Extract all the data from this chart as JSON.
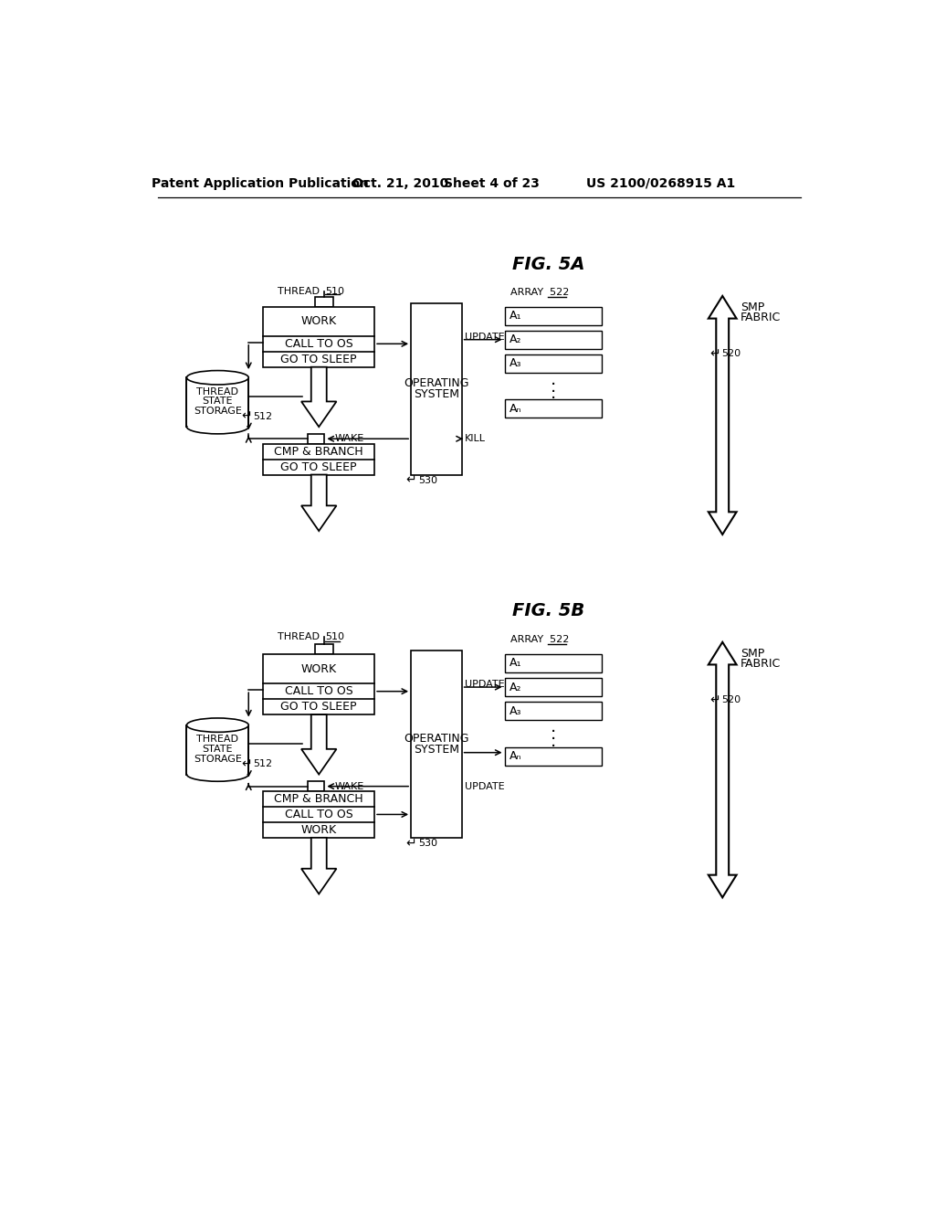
{
  "bg": "#ffffff",
  "lc": "#000000",
  "header_left": "Patent Application Publication",
  "header_date": "Oct. 21, 2010",
  "header_sheet": "Sheet 4 of 23",
  "header_patent": "US 2100/0268915 A1",
  "fig5a_title": "FIG. 5A",
  "fig5b_title": "FIG. 5B",
  "smp_label": [
    "SMP",
    "FABRIC"
  ],
  "smp_num": "520",
  "os_label": [
    "OPERATING",
    "SYSTEM"
  ],
  "os_num": "530",
  "array_label": "ARRAY",
  "array_num": "522",
  "array_items_5a": [
    "A₁",
    "A₂",
    "A₃",
    "Aₙ"
  ],
  "array_items_5b": [
    "A₁",
    "A₂",
    "A₃",
    "Aₙ"
  ],
  "thread_label": "THREAD",
  "thread_num": "510",
  "cyl_label": "512",
  "wake_label": "WAKE",
  "update_label": "UPDATE",
  "kill_label": "KILL",
  "work_label": "WORK",
  "calltos_label": "CALL TO OS",
  "gotosleep_label": "GO TO SLEEP",
  "cmpbranch_label": "CMP & BRANCH",
  "thread_lines": [
    "THREAD",
    "STATE",
    "STORAGE"
  ]
}
